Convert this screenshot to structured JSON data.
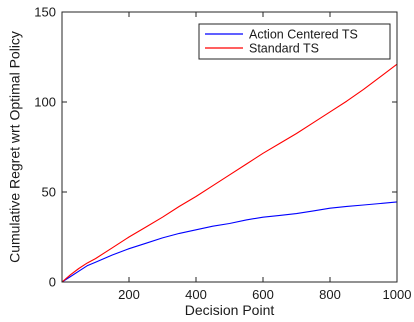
{
  "chart_data": {
    "type": "line",
    "title": "",
    "xlabel": "Decision Point",
    "ylabel": "Cumulative Regret wrt Optimal Policy",
    "xlim": [
      0,
      1000
    ],
    "ylim": [
      0,
      150
    ],
    "xticks": [
      200,
      400,
      600,
      800,
      1000
    ],
    "yticks": [
      0,
      50,
      100,
      150
    ],
    "grid": false,
    "legend": "top-right",
    "series": [
      {
        "name": "Action Centered TS",
        "color": "#0000ff",
        "x": [
          0,
          25,
          50,
          75,
          100,
          150,
          200,
          250,
          300,
          350,
          400,
          450,
          500,
          550,
          600,
          650,
          700,
          750,
          800,
          850,
          900,
          950,
          1000
        ],
        "y": [
          0,
          3,
          6,
          9,
          11,
          15,
          18.5,
          21.5,
          24.5,
          27,
          29,
          31,
          32.5,
          34.5,
          36,
          37,
          38,
          39.5,
          41,
          42,
          42.8,
          43.6,
          44.5
        ]
      },
      {
        "name": "Standard TS",
        "color": "#ff0000",
        "x": [
          0,
          25,
          50,
          75,
          100,
          150,
          200,
          250,
          300,
          350,
          400,
          450,
          500,
          550,
          600,
          650,
          700,
          750,
          800,
          850,
          900,
          950,
          1000
        ],
        "y": [
          0,
          4,
          7.5,
          10.5,
          13,
          19,
          25,
          30.5,
          36,
          42,
          47.5,
          53.5,
          59.5,
          65.5,
          71.5,
          77,
          82.5,
          88.5,
          94.5,
          100.5,
          107,
          114,
          121
        ]
      }
    ]
  }
}
